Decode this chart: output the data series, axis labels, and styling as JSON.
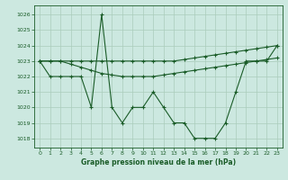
{
  "title": "Graphe pression niveau de la mer (hPa)",
  "bg_color": "#cce8e0",
  "grid_color": "#aaccbb",
  "line_color": "#1a5c28",
  "xlim": [
    -0.5,
    23.5
  ],
  "ylim": [
    1017.4,
    1026.6
  ],
  "yticks": [
    1018,
    1019,
    1020,
    1021,
    1022,
    1023,
    1024,
    1025,
    1026
  ],
  "xticks": [
    0,
    1,
    2,
    3,
    4,
    5,
    6,
    7,
    8,
    9,
    10,
    11,
    12,
    13,
    14,
    15,
    16,
    17,
    18,
    19,
    20,
    21,
    22,
    23
  ],
  "series1": [
    1023,
    1022,
    1022,
    1022,
    1022,
    1020,
    1026,
    1020,
    1019,
    1020,
    1020,
    1021,
    1020,
    1019,
    1019,
    1018,
    1018,
    1018,
    1019,
    1021,
    1023,
    1023,
    1023,
    1024
  ],
  "series2": [
    1023,
    1023,
    1023,
    1022.8,
    1022.6,
    1022.4,
    1022.2,
    1022.1,
    1022.0,
    1022.0,
    1022.0,
    1022.0,
    1022.1,
    1022.2,
    1022.3,
    1022.4,
    1022.5,
    1022.6,
    1022.7,
    1022.8,
    1022.9,
    1023.0,
    1023.1,
    1023.2
  ],
  "series3": [
    1023,
    1023,
    1023,
    1023,
    1023,
    1023,
    1023,
    1023,
    1023,
    1023,
    1023,
    1023,
    1023,
    1023,
    1023.1,
    1023.2,
    1023.3,
    1023.4,
    1023.5,
    1023.6,
    1023.7,
    1023.8,
    1023.9,
    1024.0
  ]
}
